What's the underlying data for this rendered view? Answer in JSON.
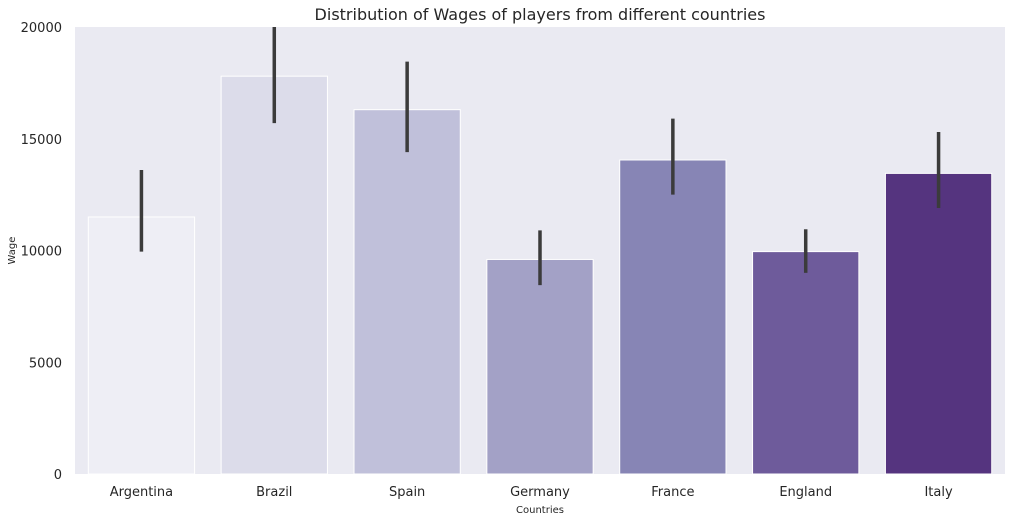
{
  "chart_data": {
    "type": "bar",
    "title": "Distribution of Wages of players from different countries",
    "xlabel": "Countries",
    "ylabel": "Wage",
    "categories": [
      "Argentina",
      "Brazil",
      "Spain",
      "Germany",
      "France",
      "England",
      "Italy"
    ],
    "values": [
      11500,
      17800,
      16300,
      9600,
      14050,
      9950,
      13450
    ],
    "error_low": [
      9950,
      15700,
      14400,
      8450,
      12500,
      9000,
      11900
    ],
    "error_high": [
      13600,
      20000,
      18450,
      10900,
      15900,
      10950,
      15300
    ],
    "ylim": [
      0,
      20000
    ],
    "yticks": [
      0,
      5000,
      10000,
      15000,
      20000
    ],
    "grid": false,
    "colors": [
      "#eeeef5",
      "#dcdcea",
      "#c0c0da",
      "#a3a1c6",
      "#8785b5",
      "#6e5b9b",
      "#55347f"
    ],
    "background": "#eaeaf2",
    "error_color": "#3b3b3b"
  }
}
